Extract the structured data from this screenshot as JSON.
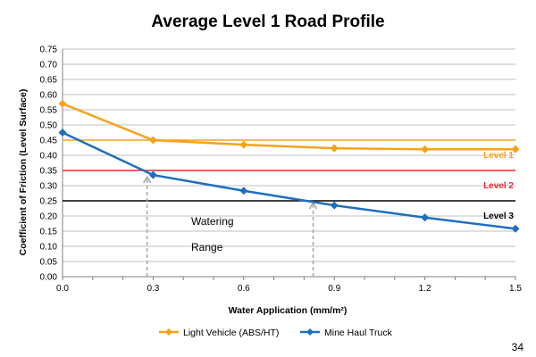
{
  "page_number": "34",
  "colors": {
    "light_vehicle": "#F5A21B",
    "mine_haul_truck": "#1F6FBF",
    "level_1": "#F5A21B",
    "level_2": "#E8282E",
    "level_3": "#000000",
    "gridline": "#BFBFBF",
    "watering_arrow": "#A6A6A6"
  },
  "chart_data": {
    "type": "line",
    "title": "Average Level 1 Road Profile",
    "xlabel": "Water Application (mm/m²)",
    "ylabel": "Coefficient of Friction (Level Surface)",
    "xlim": [
      0,
      1.5
    ],
    "ylim": [
      0,
      0.75
    ],
    "x_ticks": [
      "0.0",
      "0.3",
      "0.6",
      "0.9",
      "1.2",
      "1.5"
    ],
    "y_ticks": [
      "0.00",
      "0.05",
      "0.10",
      "0.15",
      "0.20",
      "0.25",
      "0.30",
      "0.35",
      "0.40",
      "0.45",
      "0.50",
      "0.55",
      "0.60",
      "0.65",
      "0.70",
      "0.75"
    ],
    "grid": "horizontal",
    "legend_position": "bottom",
    "series": [
      {
        "name": "Light Vehicle (ABS/HT)",
        "color": "#F5A21B",
        "marker": "diamond",
        "points": [
          [
            0.0,
            0.57
          ],
          [
            0.3,
            0.45
          ],
          [
            0.6,
            0.435
          ],
          [
            0.9,
            0.423
          ],
          [
            1.2,
            0.42
          ],
          [
            1.5,
            0.42
          ]
        ]
      },
      {
        "name": "Mine Haul Truck",
        "color": "#1F6FBF",
        "marker": "diamond",
        "points": [
          [
            0.0,
            0.475
          ],
          [
            0.3,
            0.335
          ],
          [
            0.6,
            0.283
          ],
          [
            0.9,
            0.235
          ],
          [
            1.2,
            0.195
          ],
          [
            1.5,
            0.158
          ]
        ]
      }
    ],
    "reference_lines": [
      {
        "label": "Level 1",
        "y": 0.45,
        "color": "#F5A21B"
      },
      {
        "label": "Level 2",
        "y": 0.35,
        "color": "#E8282E"
      },
      {
        "label": "Level 3",
        "y": 0.25,
        "color": "#000000"
      }
    ],
    "annotations": {
      "watering_text": [
        "Watering",
        "Range"
      ],
      "watering_arrows": [
        {
          "x": 0.28,
          "y": 0.335
        },
        {
          "x": 0.83,
          "y": 0.25
        }
      ]
    }
  }
}
